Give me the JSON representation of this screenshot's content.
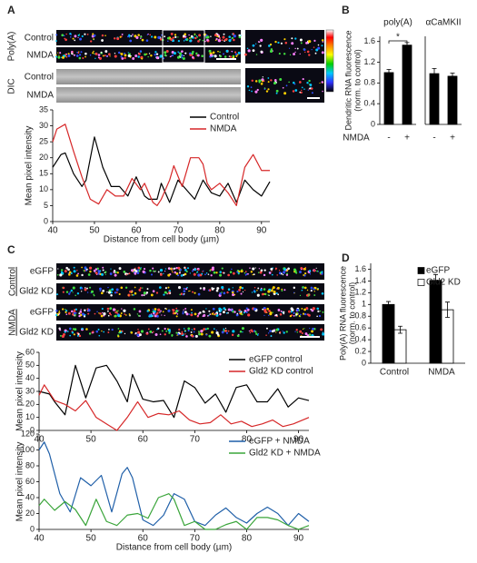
{
  "figure": {
    "panel_letters": [
      "A",
      "B",
      "C",
      "D"
    ],
    "a": {
      "groups": [
        "Poly(A)",
        "DIC"
      ],
      "rows": [
        "Control",
        "NMDA",
        "Control",
        "NMDA"
      ]
    },
    "b": {
      "treatment": "NMDA"
    },
    "c": {
      "groups": [
        "Control",
        "NMDA"
      ],
      "rows": [
        "eGFP",
        "Gld2 KD",
        "eGFP",
        "Gld2 KD"
      ]
    }
  },
  "chart_data": [
    {
      "type": "line",
      "xlabel": "Distance from cell body (µm)",
      "ylabel": "Mean pixel intensity",
      "xlim": [
        40,
        92
      ],
      "xticks": [
        40,
        50,
        60,
        70,
        80,
        90
      ],
      "ylim": [
        0,
        35
      ],
      "yticks": [
        0,
        5,
        10,
        15,
        20,
        25,
        30,
        35
      ],
      "legend": "upper right",
      "series": [
        {
          "name": "Control",
          "color": "#000000",
          "x": [
            40,
            42,
            43,
            45,
            47,
            48,
            50,
            52,
            54,
            56,
            58,
            60,
            62,
            63,
            65,
            66,
            68,
            70,
            72,
            74,
            76,
            78,
            80,
            82,
            84,
            86,
            88,
            90,
            92
          ],
          "values": [
            17,
            21,
            21.5,
            15,
            11,
            13,
            26.5,
            17,
            11,
            11,
            8,
            14,
            8,
            7,
            7,
            12,
            6,
            13,
            10,
            7,
            13,
            9,
            8,
            12,
            6,
            13,
            10,
            8,
            12.5
          ]
        },
        {
          "name": "NMDA",
          "color": "#d62728",
          "x": [
            40,
            41,
            43,
            45,
            47,
            49,
            51,
            53,
            55,
            57,
            59,
            61,
            62,
            64,
            65,
            66,
            68,
            69,
            71,
            73,
            75,
            76,
            77,
            78,
            80,
            82,
            84,
            86,
            88,
            90,
            92
          ],
          "values": [
            25,
            29,
            30.5,
            22,
            14,
            7,
            5.5,
            10,
            8,
            8,
            13.5,
            10,
            12,
            6,
            5,
            7,
            13,
            17.5,
            11,
            20,
            20,
            18,
            12,
            10,
            12,
            9,
            5,
            17,
            21,
            16,
            16
          ]
        }
      ]
    },
    {
      "type": "bar",
      "title": "poly(A)",
      "ylabel": [
        "Dendritic RNA fluorescence",
        "(norm. to control)"
      ],
      "categories": [
        "-",
        "+"
      ],
      "values": [
        1.0,
        1.53
      ],
      "errors": [
        0.06,
        0.05
      ],
      "color": "#000000",
      "ylim": [
        0,
        1.7
      ],
      "yticks": [
        0,
        0.4,
        0.8,
        1.2,
        1.6
      ],
      "annotation": "*"
    },
    {
      "type": "bar",
      "title": "αCaMKII",
      "categories": [
        "-",
        "+"
      ],
      "values": [
        0.98,
        0.93
      ],
      "errors": [
        0.1,
        0.06
      ],
      "color": "#000000",
      "ylim": [
        0,
        1.7
      ]
    },
    {
      "type": "line",
      "ylabel": "Mean pixel intensity",
      "xlim": [
        40,
        92
      ],
      "xticks": [
        40,
        50,
        60,
        70,
        80,
        90
      ],
      "ylim": [
        0,
        60
      ],
      "yticks": [
        0,
        10,
        20,
        30,
        40,
        50,
        60
      ],
      "legend": "upper right",
      "series": [
        {
          "name": "eGFP control",
          "color": "#000000",
          "x": [
            40,
            42,
            43,
            45,
            47,
            49,
            51,
            53,
            55,
            57,
            58,
            60,
            62,
            64,
            66,
            68,
            70,
            72,
            74,
            76,
            78,
            80,
            82,
            84,
            86,
            88,
            90,
            92
          ],
          "values": [
            30,
            28,
            22,
            12,
            50,
            25,
            48,
            50,
            38,
            22,
            43,
            24,
            22,
            23,
            10,
            38,
            33,
            21,
            28,
            14,
            33,
            35,
            22,
            22,
            32,
            18,
            25,
            23
          ]
        },
        {
          "name": "Gld2 KD control",
          "color": "#d62728",
          "x": [
            40,
            41,
            43,
            45,
            47,
            49,
            51,
            53,
            55,
            57,
            59,
            61,
            63,
            65,
            67,
            69,
            71,
            73,
            75,
            77,
            79,
            81,
            83,
            85,
            87,
            89,
            92
          ],
          "values": [
            27,
            35,
            23,
            20,
            15,
            23,
            10,
            5,
            0,
            10,
            22,
            10,
            13,
            12,
            15,
            8,
            5,
            6,
            12,
            5,
            7,
            3,
            5,
            8,
            3,
            5,
            10
          ]
        }
      ]
    },
    {
      "type": "line",
      "xlabel": "Distance from cell body (µm)",
      "ylabel": "Mean pixel intensity",
      "xlim": [
        40,
        92
      ],
      "xticks": [
        40,
        50,
        60,
        70,
        80,
        90
      ],
      "ylim": [
        0,
        120
      ],
      "yticks": [
        0,
        20,
        40,
        60,
        80,
        100,
        120
      ],
      "legend": "upper right",
      "series": [
        {
          "name": "eGFP + NMDA",
          "color": "#1f5fa8",
          "x": [
            40,
            41,
            42,
            44,
            46,
            48,
            50,
            52,
            54,
            56,
            57,
            58,
            60,
            62,
            64,
            66,
            68,
            70,
            72,
            74,
            76,
            78,
            80,
            82,
            84,
            86,
            88,
            90,
            92
          ],
          "values": [
            100,
            110,
            95,
            45,
            22,
            65,
            55,
            68,
            22,
            70,
            78,
            65,
            12,
            5,
            18,
            45,
            38,
            10,
            5,
            18,
            27,
            15,
            8,
            20,
            28,
            20,
            5,
            20,
            10
          ]
        },
        {
          "name": "Gld2 KD + NMDA",
          "color": "#3aa53a",
          "x": [
            40,
            41,
            43,
            45,
            47,
            49,
            51,
            53,
            55,
            57,
            59,
            61,
            63,
            65,
            66,
            68,
            70,
            72,
            74,
            76,
            78,
            80,
            82,
            84,
            86,
            88,
            90,
            92
          ],
          "values": [
            30,
            38,
            24,
            35,
            25,
            5,
            38,
            10,
            5,
            18,
            20,
            14,
            40,
            45,
            38,
            5,
            10,
            0,
            0,
            6,
            10,
            0,
            15,
            15,
            12,
            5,
            0,
            5
          ]
        }
      ]
    },
    {
      "type": "bar",
      "ylabel": [
        "Poly(A) RNA fluorescence",
        "(norm. to control)"
      ],
      "categories": [
        "Control",
        "NMDA"
      ],
      "ylim": [
        0,
        1.7
      ],
      "yticks": [
        0,
        0.2,
        0.4,
        0.6,
        0.8,
        1,
        1.2,
        1.4,
        1.6
      ],
      "legend": "upper right",
      "series": [
        {
          "name": "eGFP",
          "color": "#000000",
          "values": [
            1.0,
            1.41
          ],
          "errors": [
            0.05,
            0.1
          ]
        },
        {
          "name": "Gld2 KD",
          "color": "#ffffff",
          "values": [
            0.57,
            0.91
          ],
          "errors": [
            0.06,
            0.13
          ]
        }
      ]
    }
  ]
}
